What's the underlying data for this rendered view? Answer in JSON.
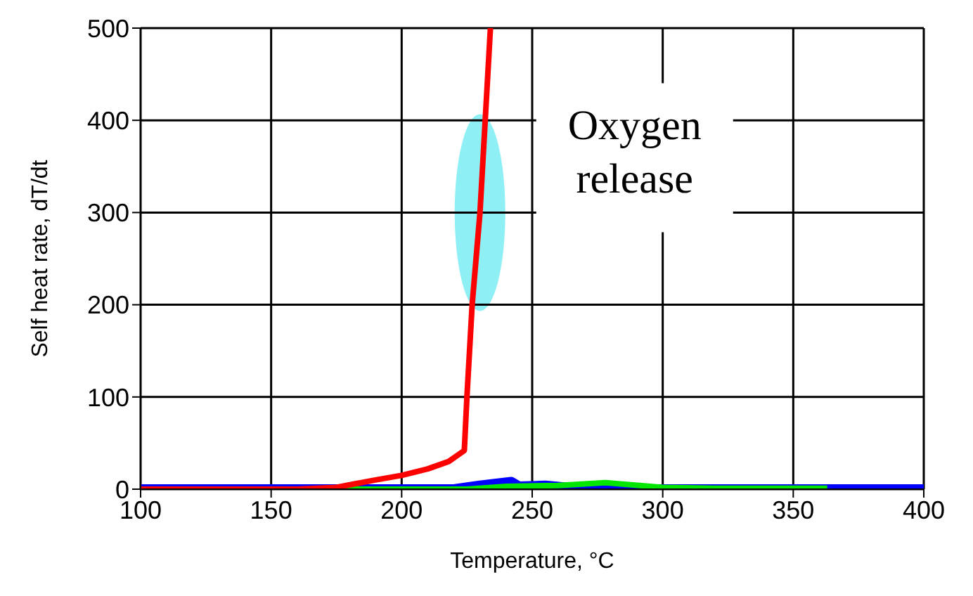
{
  "chart_data": {
    "type": "line",
    "xlabel": "Temperature, °C",
    "ylabel": "Self heat rate, dT/dt",
    "xlim": [
      100,
      400
    ],
    "ylim": [
      0,
      500
    ],
    "xticks": [
      100,
      150,
      200,
      250,
      300,
      350,
      400
    ],
    "yticks": [
      0,
      100,
      200,
      300,
      400,
      500
    ],
    "grid": true,
    "legend": false,
    "marker": "none",
    "line_style": "solid",
    "annotations": [
      {
        "text": "Oxygen release",
        "x": 230,
        "y": 300
      }
    ],
    "series": [
      {
        "color": "#0000ff",
        "x": [
          100,
          220,
          230,
          242,
          245,
          255,
          270,
          300,
          400
        ],
        "values": [
          0,
          0,
          4,
          8,
          3,
          4,
          0,
          0,
          0
        ]
      },
      {
        "color": "#00e600",
        "x": [
          100,
          225,
          240,
          260,
          278,
          300,
          320,
          363
        ],
        "values": [
          0,
          0,
          3,
          4,
          7,
          2,
          1,
          1
        ]
      },
      {
        "color": "#ff0000",
        "x": [
          100,
          160,
          175,
          190,
          200,
          210,
          218,
          224,
          225,
          227,
          230,
          232,
          234
        ],
        "values": [
          0,
          0,
          2,
          10,
          15,
          22,
          30,
          42,
          100,
          200,
          300,
          400,
          500
        ]
      }
    ]
  }
}
